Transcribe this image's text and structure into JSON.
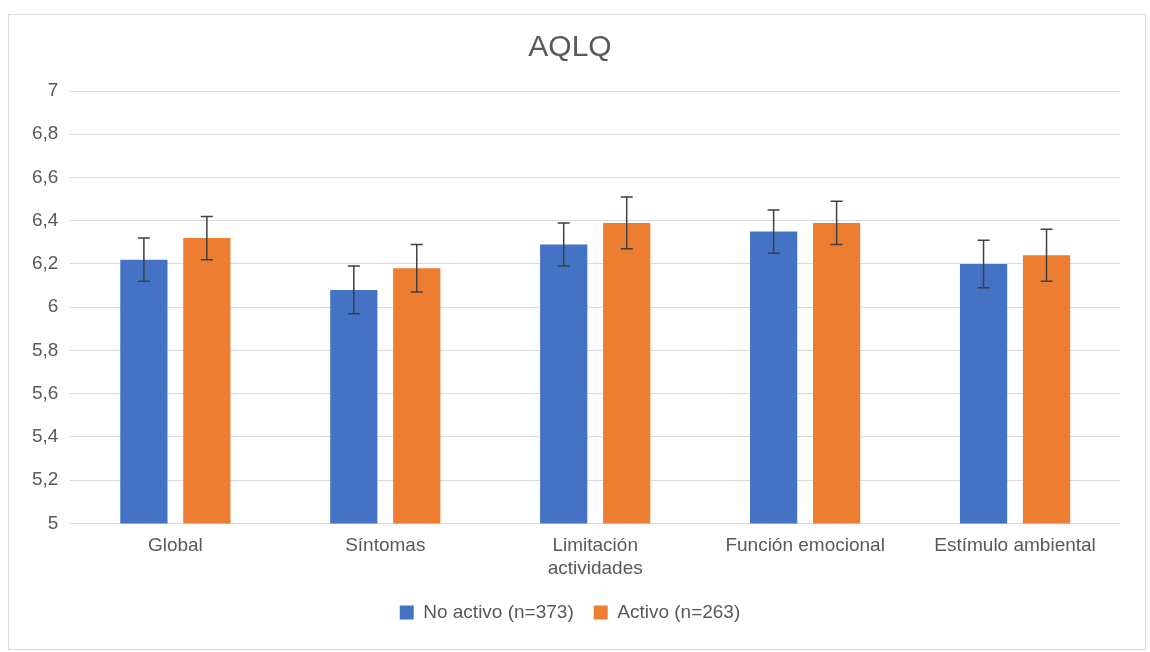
{
  "chart_data": {
    "type": "bar",
    "title": "AQLQ",
    "categories": [
      "Global",
      "Síntomas",
      "Limitación actividades",
      "Función emocional",
      "Estímulo ambiental"
    ],
    "series": [
      {
        "name": "No activo (n=373)",
        "color": "#4472c4",
        "values": [
          6.22,
          6.08,
          6.29,
          6.35,
          6.2
        ],
        "errors": [
          [
            6.12,
            6.32
          ],
          [
            5.97,
            6.19
          ],
          [
            6.19,
            6.39
          ],
          [
            6.25,
            6.45
          ],
          [
            6.09,
            6.31
          ]
        ]
      },
      {
        "name": "Activo (n=263)",
        "color": "#ed7d31",
        "values": [
          6.32,
          6.18,
          6.39,
          6.39,
          6.24
        ],
        "errors": [
          [
            6.22,
            6.42
          ],
          [
            6.07,
            6.29
          ],
          [
            6.27,
            6.51
          ],
          [
            6.29,
            6.49
          ],
          [
            6.12,
            6.36
          ]
        ]
      }
    ],
    "ylim": [
      5,
      7
    ],
    "yticks": [
      5,
      {
        "value": 5.2,
        "label": "5,2"
      },
      {
        "value": 5.4,
        "label": "5,4"
      },
      {
        "value": 5.6,
        "label": "5,6"
      },
      {
        "value": 5.8,
        "label": "5,8"
      },
      6,
      {
        "value": 6.2,
        "label": "6,2"
      },
      {
        "value": 6.4,
        "label": "6,4"
      },
      {
        "value": 6.6,
        "label": "6,6"
      },
      {
        "value": 6.8,
        "label": "6,8"
      },
      7
    ],
    "grid": "y",
    "legend": "bottom"
  }
}
